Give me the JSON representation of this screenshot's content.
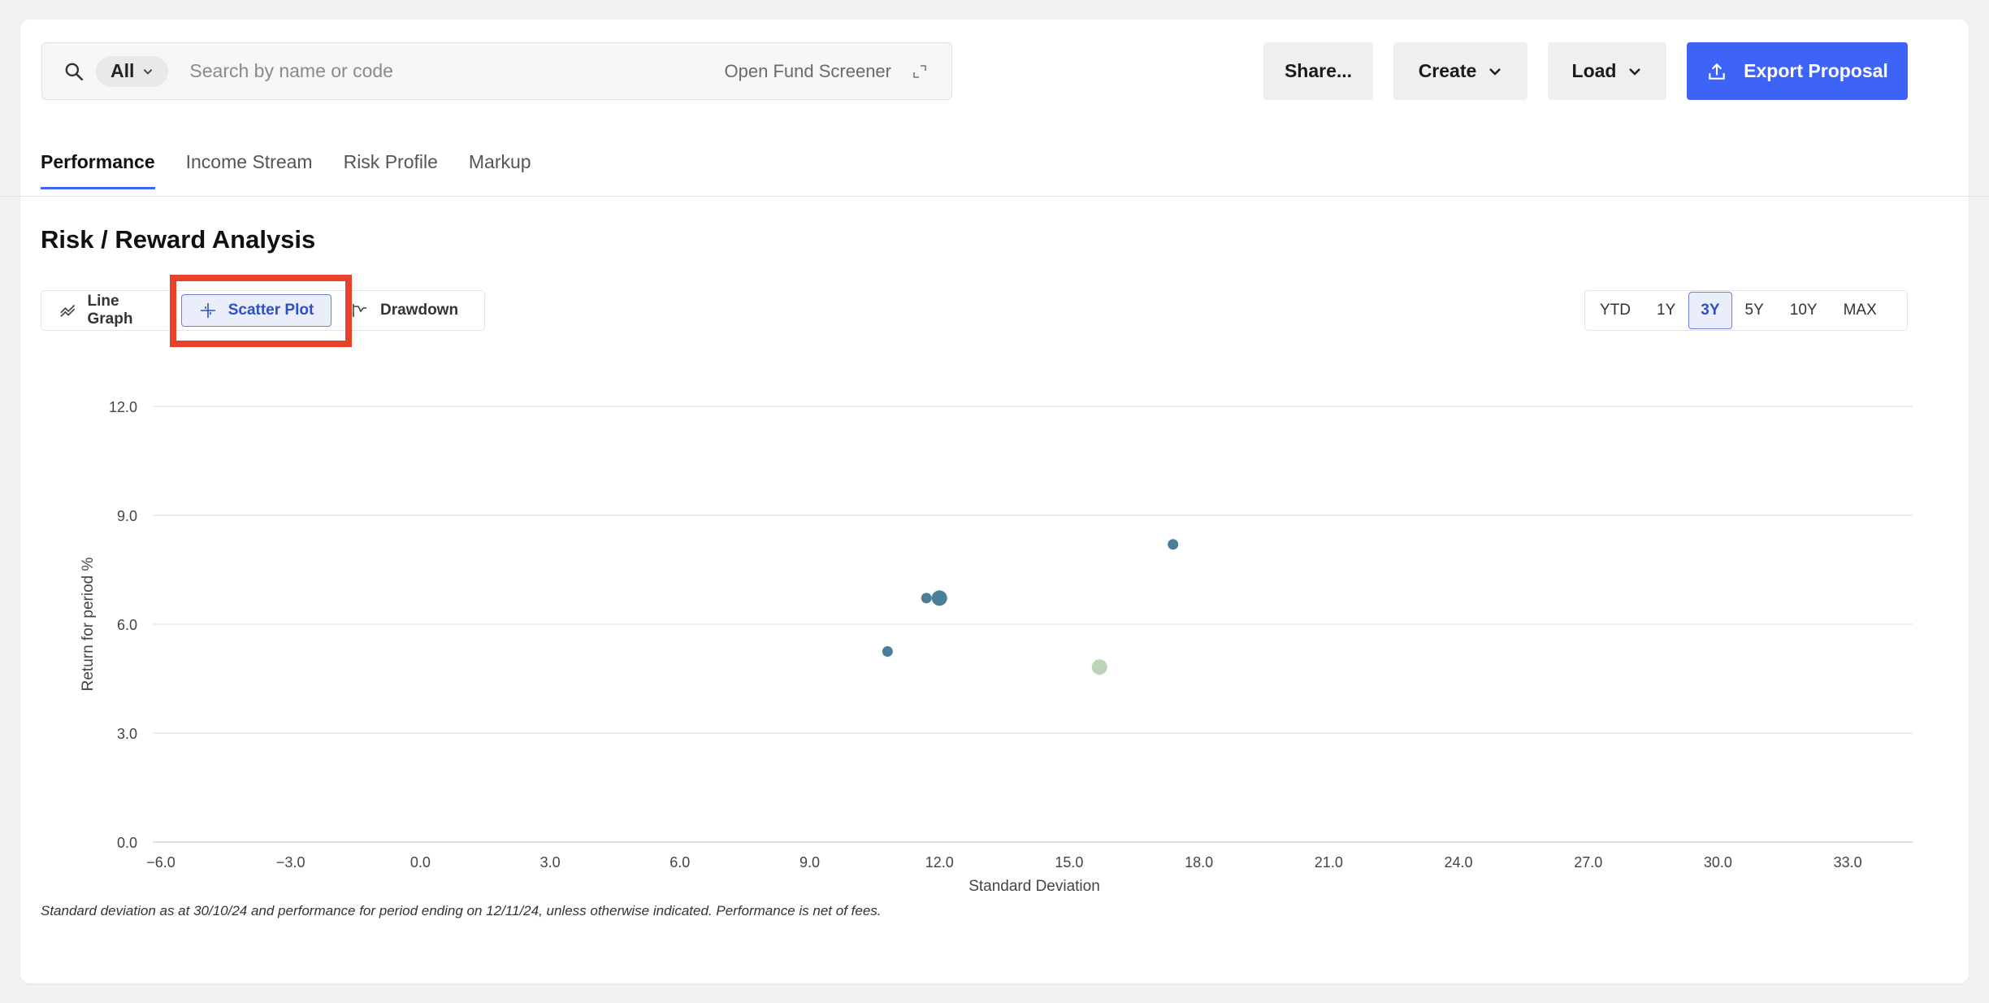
{
  "search": {
    "filter_label": "All",
    "placeholder": "Search by name or code",
    "screener_label": "Open Fund Screener"
  },
  "actions": {
    "share_label": "Share...",
    "create_label": "Create",
    "load_label": "Load",
    "export_label": "Export Proposal"
  },
  "tabs": [
    {
      "label": "Performance",
      "active": true
    },
    {
      "label": "Income Stream",
      "active": false
    },
    {
      "label": "Risk Profile",
      "active": false
    },
    {
      "label": "Markup",
      "active": false
    }
  ],
  "section": {
    "title": "Risk / Reward Analysis",
    "views": [
      "Line Graph",
      "Scatter Plot",
      "Drawdown"
    ],
    "active_view": "Scatter Plot",
    "periods": [
      "YTD",
      "1Y",
      "3Y",
      "5Y",
      "10Y",
      "MAX"
    ],
    "active_period": "3Y"
  },
  "colors": {
    "accent": "#3d64f6",
    "highlight": "#e8432a",
    "point": "#4a7f9b",
    "point_alt": "#bcd4b8"
  },
  "chart_data": {
    "type": "scatter",
    "xlabel": "Standard Deviation",
    "ylabel": "Return for period %",
    "xlim": [
      -6,
      34.5
    ],
    "ylim": [
      0,
      12
    ],
    "x_ticks": [
      -6.0,
      -3.0,
      0.0,
      3.0,
      6.0,
      9.0,
      12.0,
      15.0,
      18.0,
      21.0,
      24.0,
      27.0,
      30.0,
      33.0
    ],
    "x_tick_labels": [
      "−6.0",
      "−3.0",
      "0.0",
      "3.0",
      "6.0",
      "9.0",
      "12.0",
      "15.0",
      "18.0",
      "21.0",
      "24.0",
      "27.0",
      "30.0",
      "33.0"
    ],
    "y_ticks": [
      0,
      3,
      6,
      9,
      12
    ],
    "y_tick_labels": [
      "0.0",
      "3.0",
      "6.0",
      "9.0",
      "12.0"
    ],
    "grid": true,
    "points": [
      {
        "x": 10.8,
        "y": 5.25,
        "size": "small",
        "color": "#4a7f9b"
      },
      {
        "x": 11.7,
        "y": 6.72,
        "size": "small",
        "color": "#4a7f9b"
      },
      {
        "x": 12.0,
        "y": 6.72,
        "size": "large",
        "color": "#4a7f9b"
      },
      {
        "x": 17.4,
        "y": 8.2,
        "size": "small",
        "color": "#4a7f9b"
      },
      {
        "x": 15.7,
        "y": 4.82,
        "size": "large",
        "color": "#bcd4b8"
      }
    ]
  },
  "footnote": "Standard deviation as at 30/10/24 and performance for period ending on 12/11/24, unless otherwise indicated. Performance is net of fees."
}
